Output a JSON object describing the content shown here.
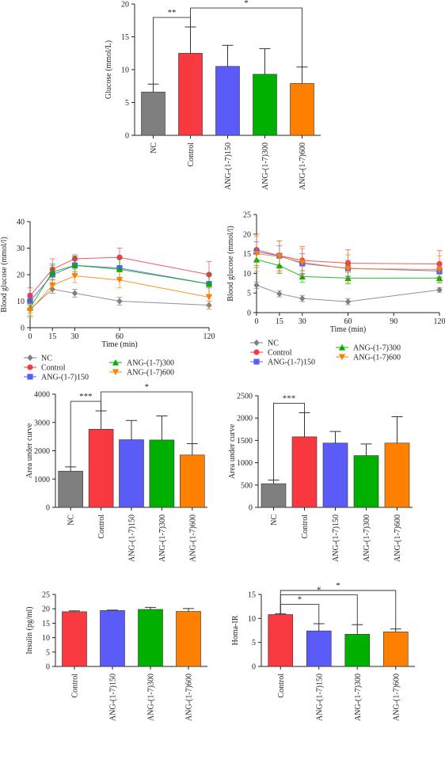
{
  "chart_data": [
    {
      "id": "a",
      "type": "bar",
      "ylabel": "Glucose (mmol/L)",
      "categories": [
        "NC",
        "Control",
        "ANG-(1-7)150",
        "ANG-(1-7)300",
        "ANG-(1-7)600"
      ],
      "values": [
        6.6,
        12.5,
        10.5,
        9.3,
        7.9
      ],
      "errors": [
        1.2,
        4.0,
        3.2,
        3.9,
        2.5
      ],
      "colors": [
        "#7f7f7f",
        "#f8393f",
        "#5b5bf7",
        "#00b000",
        "#ff8000"
      ],
      "ylim": [
        0,
        20
      ],
      "yticks": [
        0,
        5,
        10,
        15,
        20
      ],
      "significance": [
        {
          "from": 0,
          "to": 1,
          "label": "**"
        },
        {
          "from": 1,
          "to": 4,
          "label": "*"
        }
      ]
    },
    {
      "id": "b",
      "type": "line",
      "xlabel": "Time (min)",
      "ylabel": "Blood glucose (mmol/l)",
      "x": [
        0,
        15,
        30,
        60,
        120
      ],
      "xticks": [
        0,
        15,
        30,
        60,
        120
      ],
      "xlim": [
        0,
        120
      ],
      "ylim": [
        0,
        40
      ],
      "yticks": [
        0,
        10,
        20,
        30,
        40
      ],
      "series": [
        {
          "name": "NC",
          "color": "#7f7f7f",
          "marker": "diamond",
          "values": [
            7.0,
            14.5,
            13.0,
            10.0,
            8.5
          ],
          "errors": [
            1.5,
            1.5,
            1.5,
            1.5,
            1.5
          ]
        },
        {
          "name": "Control",
          "color": "#f8393f",
          "marker": "circle",
          "values": [
            12.0,
            22.0,
            26.0,
            26.5,
            20.0
          ],
          "errors": [
            3.0,
            4.0,
            1.5,
            3.5,
            5.0
          ]
        },
        {
          "name": "ANG-(1-7)150",
          "color": "#5b5bf7",
          "marker": "square",
          "values": [
            10.0,
            20.0,
            23.5,
            22.5,
            16.5
          ],
          "errors": [
            3.0,
            3.5,
            2.5,
            3.5,
            4.0
          ]
        },
        {
          "name": "ANG-(1-7)300",
          "color": "#00b000",
          "marker": "triangle-up",
          "values": [
            7.5,
            21.0,
            23.5,
            22.0,
            16.5
          ],
          "errors": [
            3.0,
            3.0,
            3.5,
            4.0,
            4.0
          ]
        },
        {
          "name": "ANG-(1-7)600",
          "color": "#ff8000",
          "marker": "triangle-down",
          "values": [
            6.5,
            16.0,
            19.5,
            18.0,
            11.5
          ],
          "errors": [
            2.5,
            3.0,
            2.5,
            3.0,
            3.5
          ]
        }
      ],
      "legend": {
        "position": "bottom",
        "order": [
          "NC",
          "Control",
          "ANG-(1-7)150",
          "ANG-(1-7)300",
          "ANG-(1-7)600"
        ]
      }
    },
    {
      "id": "c",
      "type": "line",
      "xlabel": "Time (min)",
      "ylabel": "Blood glucose (mmol/l)",
      "x": [
        0,
        15,
        30,
        60,
        120
      ],
      "xticks": [
        0,
        15,
        30,
        60,
        90,
        120
      ],
      "xlim": [
        0,
        120
      ],
      "ylim": [
        0,
        25
      ],
      "yticks": [
        0,
        5,
        10,
        15,
        20,
        25
      ],
      "series": [
        {
          "name": "NC",
          "color": "#7f7f7f",
          "marker": "diamond",
          "values": [
            7.0,
            4.8,
            3.6,
            2.8,
            5.8
          ],
          "errors": [
            0.8,
            0.8,
            0.8,
            0.8,
            0.6
          ]
        },
        {
          "name": "Control",
          "color": "#f8393f",
          "marker": "circle",
          "values": [
            16.0,
            14.5,
            13.3,
            12.6,
            12.4
          ],
          "errors": [
            4.0,
            3.8,
            3.5,
            3.4,
            3.4
          ]
        },
        {
          "name": "ANG-(1-7)150",
          "color": "#5b5bf7",
          "marker": "square",
          "values": [
            15.5,
            14.5,
            12.5,
            11.3,
            10.6
          ],
          "errors": [
            2.5,
            2.5,
            2.5,
            2.0,
            1.5
          ]
        },
        {
          "name": "ANG-(1-7)300",
          "color": "#00b000",
          "marker": "triangle-up",
          "values": [
            13.5,
            12.0,
            9.2,
            8.8,
            8.8
          ],
          "errors": [
            2.0,
            2.0,
            1.5,
            1.5,
            1.0
          ]
        },
        {
          "name": "ANG-(1-7)600",
          "color": "#ff8000",
          "marker": "triangle-down",
          "values": [
            15.0,
            14.3,
            12.8,
            11.2,
            11.0
          ],
          "errors": [
            4.5,
            4.0,
            3.5,
            3.5,
            3.5
          ]
        }
      ],
      "legend": {
        "position": "bottom",
        "order": [
          "NC",
          "Control",
          "ANG-(1-7)150",
          "ANG-(1-7)300",
          "ANG-(1-7)600"
        ]
      }
    },
    {
      "id": "d",
      "type": "bar",
      "ylabel": "Area under curve",
      "categories": [
        "NC",
        "Control",
        "ANG-(1-7)150",
        "ANG-(1-7)300",
        "ANG-(1-7)600"
      ],
      "values": [
        1280,
        2760,
        2390,
        2380,
        1850
      ],
      "errors": [
        150,
        650,
        680,
        850,
        400
      ],
      "colors": [
        "#7f7f7f",
        "#f8393f",
        "#5b5bf7",
        "#00b000",
        "#ff8000"
      ],
      "ylim": [
        0,
        4000
      ],
      "yticks": [
        0,
        1000,
        2000,
        3000,
        4000
      ],
      "significance": [
        {
          "from": 0,
          "to": 1,
          "label": "***"
        },
        {
          "from": 1,
          "to": 4,
          "label": "*"
        }
      ]
    },
    {
      "id": "e",
      "type": "bar",
      "ylabel": "Area under curve",
      "categories": [
        "NC",
        "Control",
        "ANG-(1-7)150",
        "ANG-(1-7)300",
        "ANG-(1-7)600"
      ],
      "values": [
        530,
        1580,
        1440,
        1160,
        1440
      ],
      "errors": [
        80,
        540,
        260,
        260,
        590
      ],
      "colors": [
        "#7f7f7f",
        "#f8393f",
        "#5b5bf7",
        "#00b000",
        "#ff8000"
      ],
      "ylim": [
        0,
        2500
      ],
      "yticks": [
        0,
        500,
        1000,
        1500,
        2000,
        2500
      ],
      "significance": [
        {
          "from": 0,
          "to": 1,
          "label": "***"
        }
      ]
    },
    {
      "id": "f",
      "type": "bar",
      "ylabel": "Insulin (pg/ml)",
      "categories": [
        "Control",
        "ANG-(1-7)150",
        "ANG-(1-7)300",
        "ANG-(1-7)600"
      ],
      "values": [
        19.0,
        19.4,
        19.8,
        19.1
      ],
      "errors": [
        0.3,
        0.15,
        0.7,
        1.0
      ],
      "colors": [
        "#f8393f",
        "#5b5bf7",
        "#00b000",
        "#ff8000"
      ],
      "ylim": [
        0,
        25
      ],
      "yticks": [
        0,
        5,
        10,
        15,
        20,
        25
      ],
      "significance": []
    },
    {
      "id": "g",
      "type": "bar",
      "ylabel": "Homa-IR",
      "categories": [
        "Control",
        "ANG-(1-7)150",
        "ANG-(1-7)300",
        "ANG-(1-7)600"
      ],
      "values": [
        10.8,
        7.4,
        6.7,
        7.2
      ],
      "errors": [
        0.15,
        1.5,
        2.0,
        0.6
      ],
      "colors": [
        "#f8393f",
        "#5b5bf7",
        "#00b000",
        "#ff8000"
      ],
      "ylim": [
        0,
        15
      ],
      "yticks": [
        0,
        5,
        10,
        15
      ],
      "significance": [
        {
          "from": 0,
          "to": 1,
          "label": "*"
        },
        {
          "from": 0,
          "to": 2,
          "label": "*"
        },
        {
          "from": 0,
          "to": 3,
          "label": "*"
        }
      ]
    }
  ]
}
